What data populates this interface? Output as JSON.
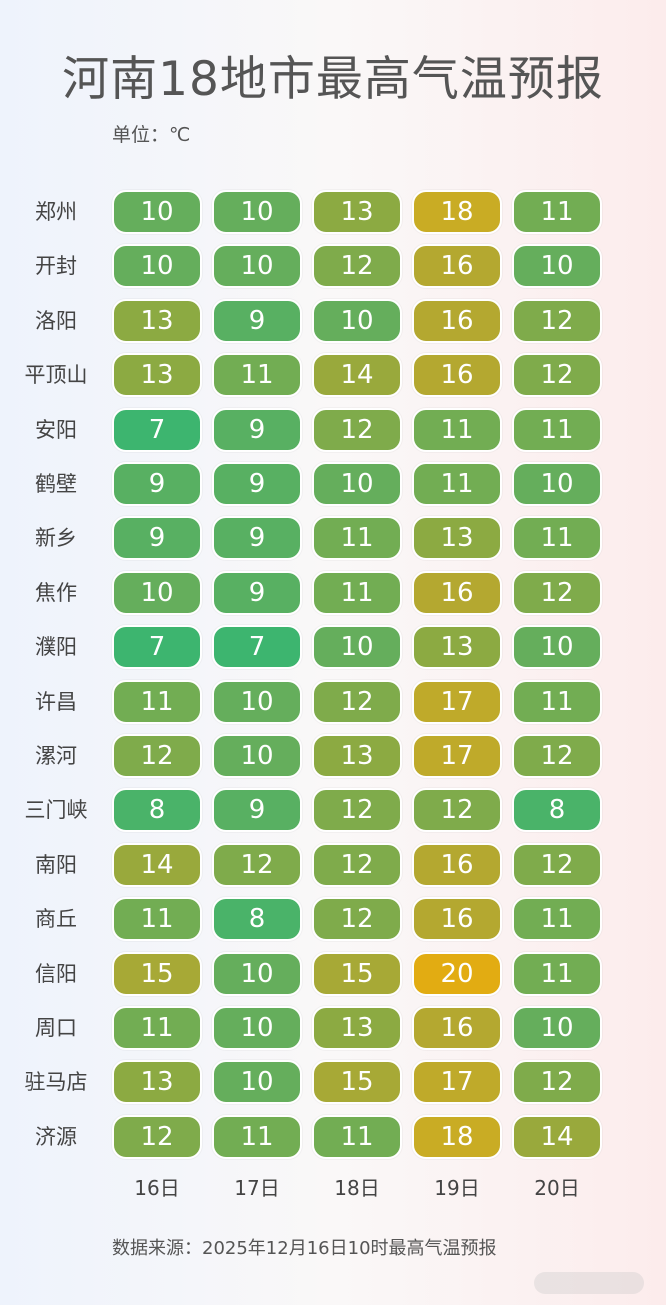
{
  "title": "河南18地市最高气温预报",
  "unit_label": "单位：℃",
  "source": "数据来源：2025年12月16日10时最高气温预报",
  "chart_data": {
    "type": "heatmap",
    "title": "河南18地市最高气温预报",
    "unit": "℃",
    "columns": [
      "16日",
      "17日",
      "18日",
      "19日",
      "20日"
    ],
    "rows": [
      {
        "city": "郑州",
        "values": [
          10,
          10,
          13,
          18,
          11
        ]
      },
      {
        "city": "开封",
        "values": [
          10,
          10,
          12,
          16,
          10
        ]
      },
      {
        "city": "洛阳",
        "values": [
          13,
          9,
          10,
          16,
          12
        ]
      },
      {
        "city": "平顶山",
        "values": [
          13,
          11,
          14,
          16,
          12
        ]
      },
      {
        "city": "安阳",
        "values": [
          7,
          9,
          12,
          11,
          11
        ]
      },
      {
        "city": "鹤壁",
        "values": [
          9,
          9,
          10,
          11,
          10
        ]
      },
      {
        "city": "新乡",
        "values": [
          9,
          9,
          11,
          13,
          11
        ]
      },
      {
        "city": "焦作",
        "values": [
          10,
          9,
          11,
          16,
          12
        ]
      },
      {
        "city": "濮阳",
        "values": [
          7,
          7,
          10,
          13,
          10
        ]
      },
      {
        "city": "许昌",
        "values": [
          11,
          10,
          12,
          17,
          11
        ]
      },
      {
        "city": "漯河",
        "values": [
          12,
          10,
          13,
          17,
          12
        ]
      },
      {
        "city": "三门峡",
        "values": [
          8,
          9,
          12,
          12,
          8
        ]
      },
      {
        "city": "南阳",
        "values": [
          14,
          12,
          12,
          16,
          12
        ]
      },
      {
        "city": "商丘",
        "values": [
          11,
          8,
          12,
          16,
          11
        ]
      },
      {
        "city": "信阳",
        "values": [
          15,
          10,
          15,
          20,
          11
        ]
      },
      {
        "city": "周口",
        "values": [
          11,
          10,
          13,
          16,
          10
        ]
      },
      {
        "city": "驻马店",
        "values": [
          13,
          10,
          15,
          17,
          12
        ]
      },
      {
        "city": "济源",
        "values": [
          12,
          11,
          11,
          18,
          14
        ]
      }
    ],
    "color_scale": {
      "min_value": 7,
      "max_value": 20,
      "min_color": "#3db56f",
      "max_color": "#e2ac12"
    }
  }
}
